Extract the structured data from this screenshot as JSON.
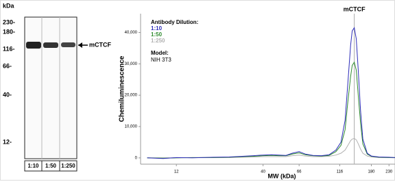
{
  "blot": {
    "unit": "kDa",
    "markers": [
      "230-",
      "180-",
      "116-",
      "66-",
      "40-",
      "12-"
    ],
    "lanes": [
      "1:10",
      "1:50",
      "1:250"
    ],
    "band_label": "mCTCF"
  },
  "chart_data": {
    "type": "line",
    "y_label": "Chemiluminescence",
    "x_label": "MW (kDa)",
    "legend_title": "Antibody Dilution:",
    "annotations": {
      "model_title": "Model:",
      "model": "NIH 3T3",
      "peak": {
        "label": "mCTCF",
        "x": 142
      }
    },
    "x": [
      8,
      10,
      12,
      15,
      20,
      25,
      30,
      35,
      40,
      45,
      50,
      55,
      60,
      66,
      72,
      80,
      90,
      100,
      110,
      118,
      125,
      130,
      135,
      138,
      142,
      146,
      150,
      155,
      160,
      170,
      180,
      200,
      230,
      250
    ],
    "series": [
      {
        "name": "1:10",
        "color": "#2b2bb8",
        "values": [
          0,
          -200,
          100,
          0,
          200,
          300,
          500,
          700,
          900,
          1000,
          900,
          800,
          1500,
          2000,
          1200,
          800,
          700,
          1000,
          2500,
          5000,
          12000,
          24000,
          36000,
          40500,
          41500,
          38000,
          28000,
          15000,
          6000,
          1500,
          600,
          300,
          200,
          100
        ]
      },
      {
        "name": "1:50",
        "color": "#2e8b2e",
        "values": [
          0,
          -100,
          0,
          100,
          100,
          200,
          400,
          500,
          700,
          800,
          700,
          700,
          1200,
          1600,
          1000,
          700,
          600,
          800,
          2000,
          4000,
          9000,
          18000,
          26000,
          29500,
          30500,
          28000,
          20000,
          11000,
          4500,
          1200,
          500,
          200,
          100,
          100
        ]
      },
      {
        "name": "1:250",
        "color": "#b0b0b0",
        "values": [
          0,
          0,
          0,
          100,
          100,
          100,
          200,
          300,
          400,
          400,
          400,
          400,
          700,
          900,
          600,
          400,
          400,
          500,
          900,
          1500,
          2500,
          4000,
          5500,
          6000,
          6200,
          5800,
          4500,
          2800,
          1500,
          600,
          300,
          100,
          100,
          0
        ]
      }
    ],
    "xlim": [
      7.3,
      250
    ],
    "xscale": "log",
    "xticks": [
      12,
      40,
      66,
      116,
      180,
      230
    ],
    "ylim": [
      -2000,
      46000
    ],
    "yticks": [
      {
        "value": 0,
        "label": "0"
      },
      {
        "value": 10000,
        "label": "10,000"
      },
      {
        "value": 20000,
        "label": "20,000"
      },
      {
        "value": 30000,
        "label": "30,000"
      },
      {
        "value": 40000,
        "label": "40,000"
      }
    ]
  }
}
